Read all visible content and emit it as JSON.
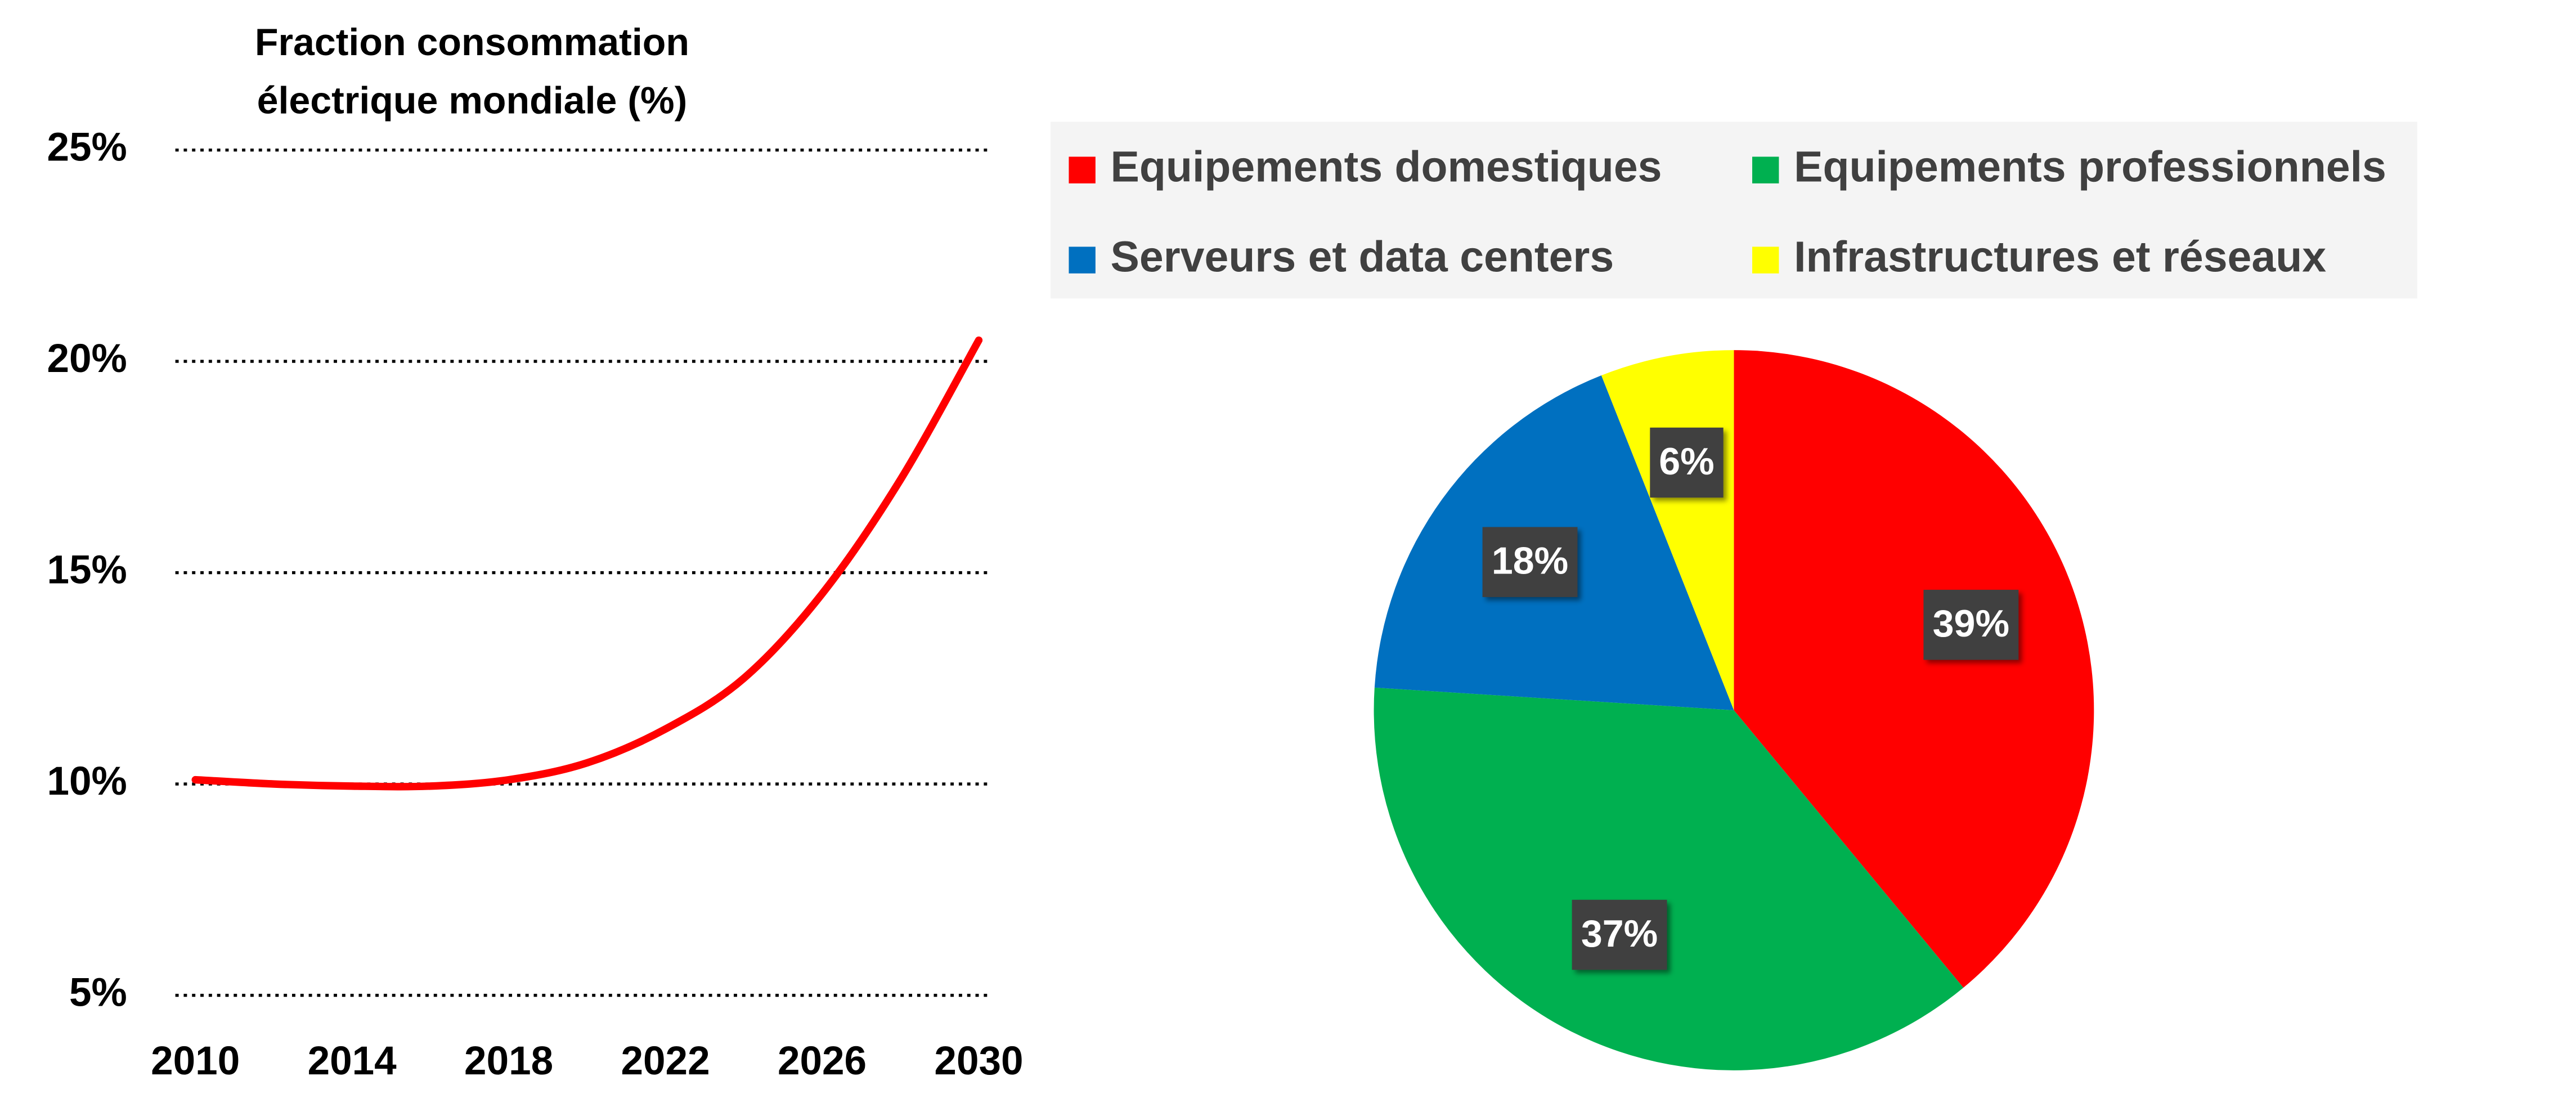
{
  "chart_data": [
    {
      "type": "line",
      "title": "Fraction consommation électrique mondiale (%)",
      "x": [
        2010,
        2012,
        2014,
        2016,
        2018,
        2020,
        2022,
        2024,
        2026,
        2028,
        2030
      ],
      "series": [
        {
          "name": "Fraction consommation électrique mondiale",
          "color": "#ff0000",
          "values": [
            10.1,
            10.0,
            9.95,
            9.95,
            10.1,
            10.5,
            11.3,
            12.5,
            14.5,
            17.2,
            20.5
          ]
        }
      ],
      "xlim": [
        2010,
        2030
      ],
      "xticks": [
        2010,
        2014,
        2018,
        2022,
        2026,
        2030
      ],
      "ylim": [
        5,
        25
      ],
      "yticks": [
        {
          "value": 5,
          "label": "5%"
        },
        {
          "value": 10,
          "label": "10%"
        },
        {
          "value": 15,
          "label": "15%"
        },
        {
          "value": 20,
          "label": "20%"
        },
        {
          "value": 25,
          "label": "25%"
        }
      ],
      "grid": true
    },
    {
      "type": "pie",
      "categories": [
        "Equipements domestiques",
        "Equipements professionnels",
        "Serveurs et data centers",
        "Infrastructures et réseaux"
      ],
      "values": [
        39,
        37,
        18,
        6
      ],
      "value_labels": [
        "39%",
        "37%",
        "18%",
        "6%"
      ],
      "colors": [
        "#ff0000",
        "#00b050",
        "#0070c0",
        "#ffff00"
      ],
      "legend": "top"
    }
  ]
}
